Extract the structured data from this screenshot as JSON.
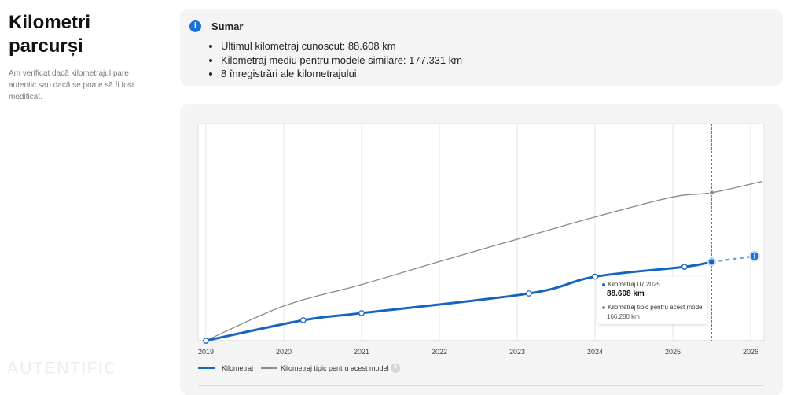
{
  "header": {
    "title": "Kilometri parcurși",
    "description": "Am verificat dacă kilometrajul pare autentic sau dacă se poate să fi fost modificat."
  },
  "summary": {
    "title": "Sumar",
    "items": [
      "Ultimul kilometraj cunoscut: 88.608 km",
      "Kilometraj mediu pentru modele similare: 177.331 km",
      "8 înregistrări ale kilometrajului"
    ]
  },
  "tooltip": {
    "series1_label": "Kilometraj 07.2025",
    "series1_value": "88.608 km",
    "series2_label": "Kilometraj tipic pentru acest model",
    "series2_value": "166.280 km"
  },
  "watermark": "AUTENTIFIC",
  "colors": {
    "primary": "#1565c0",
    "typical": "#8a8a8a",
    "accent": "#1a6fd8"
  },
  "chart_data": {
    "type": "line",
    "title": "",
    "xlabel": "",
    "ylabel": "",
    "x_ticks": [
      "2019",
      "2020",
      "2021",
      "2022",
      "2023",
      "2024",
      "2025",
      "2026"
    ],
    "xlim": [
      2019,
      2026.15
    ],
    "ylim": [
      0,
      244000
    ],
    "grid": true,
    "series": [
      {
        "name": "Kilometraj",
        "points": [
          [
            2019.0,
            0
          ],
          [
            2020.25,
            23000
          ],
          [
            2021.0,
            31000
          ],
          [
            2023.15,
            53000
          ],
          [
            2024.0,
            72000
          ],
          [
            2025.15,
            83000
          ],
          [
            2025.5,
            88608
          ]
        ],
        "projection": [
          [
            2025.5,
            88608
          ],
          [
            2026.05,
            95000
          ]
        ]
      },
      {
        "name": "Kilometraj tipic pentru acest model",
        "points": [
          [
            2019.0,
            0
          ],
          [
            2020.0,
            39000
          ],
          [
            2021.0,
            63000
          ],
          [
            2022.0,
            89000
          ],
          [
            2023.0,
            114000
          ],
          [
            2024.0,
            139000
          ],
          [
            2025.0,
            161500
          ],
          [
            2025.5,
            166280
          ],
          [
            2026.15,
            179000
          ]
        ]
      }
    ],
    "marker_x": 2025.5,
    "legend": [
      "Kilometraj",
      "Kilometraj tipic pentru acest model"
    ],
    "legend_position": "bottom-left"
  }
}
